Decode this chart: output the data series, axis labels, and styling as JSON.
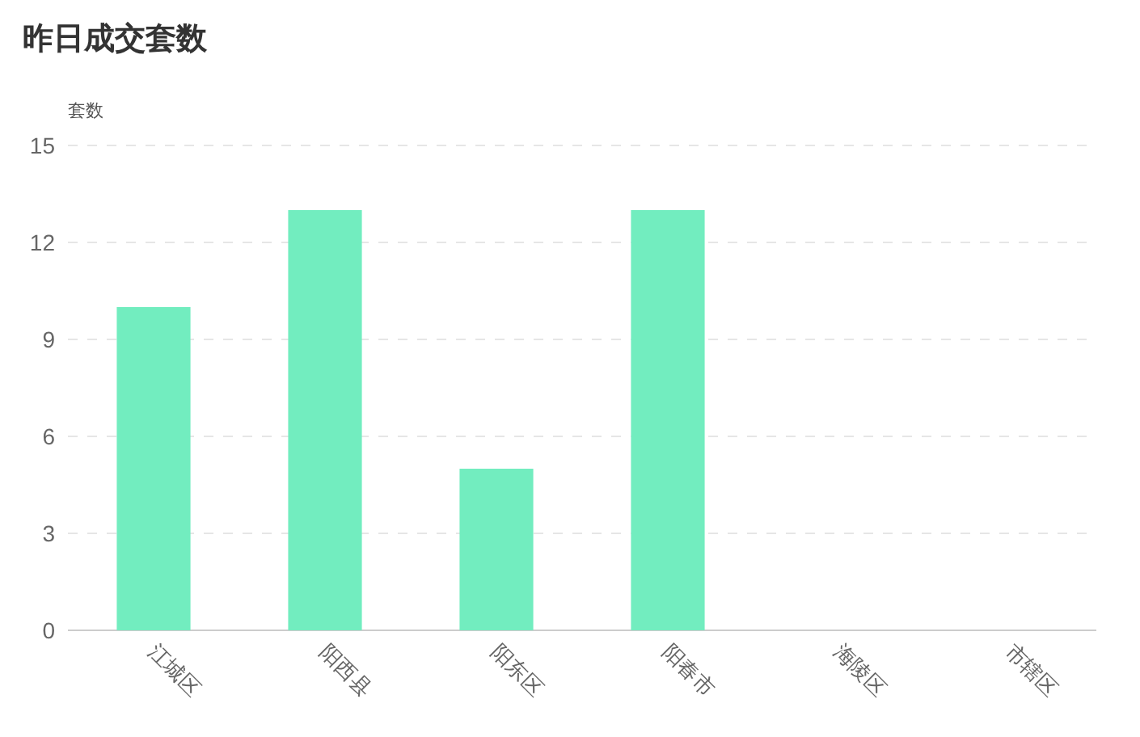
{
  "chart_data": {
    "type": "bar",
    "title": "昨日成交套数",
    "ylabel": "套数",
    "categories": [
      "江城区",
      "阳西县",
      "阳东区",
      "阳春市",
      "海陵区",
      "市辖区"
    ],
    "values": [
      10,
      13,
      5,
      13,
      0,
      0
    ],
    "color": "#72edbf",
    "ylim": [
      0,
      15
    ],
    "yticks": [
      0,
      3,
      6,
      9,
      12,
      15
    ],
    "grid": "y"
  }
}
